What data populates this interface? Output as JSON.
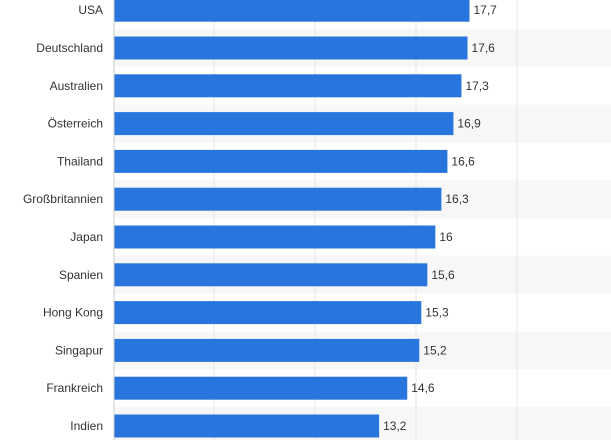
{
  "chart_data": {
    "type": "bar",
    "orientation": "horizontal",
    "categories": [
      "USA",
      "Deutschland",
      "Australien",
      "Österreich",
      "Thailand",
      "Großbritannien",
      "Japan",
      "Spanien",
      "Hong Kong",
      "Singapur",
      "Frankreich",
      "Indien"
    ],
    "value_labels": [
      "17,7",
      "17,6",
      "17,3",
      "16,9",
      "16,6",
      "16,3",
      "16",
      "15,6",
      "15,3",
      "15,2",
      "14,6",
      "13,2"
    ],
    "values": [
      17.7,
      17.6,
      17.3,
      16.9,
      16.6,
      16.3,
      16,
      15.6,
      15.3,
      15.2,
      14.6,
      13.2
    ],
    "xlim": [
      0,
      22.5
    ],
    "grid": true,
    "legend": "none"
  },
  "colors": {
    "bar": "#2876dd",
    "band": "#f7f7f7",
    "grid": "#e6e6e6",
    "text": "#333333"
  }
}
